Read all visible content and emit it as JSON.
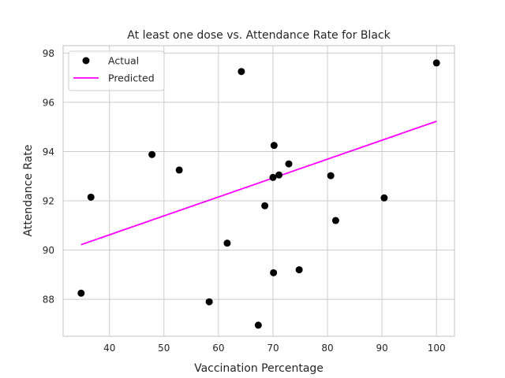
{
  "chart_data": {
    "type": "scatter",
    "title": "At least one dose vs. Attendance Rate for Black",
    "xlabel": "Vaccination Percentage",
    "ylabel": "Attendance Rate",
    "xlim": [
      31.5,
      103.3
    ],
    "ylim": [
      86.5,
      98.3
    ],
    "xticks": [
      40,
      50,
      60,
      70,
      80,
      90,
      100
    ],
    "yticks": [
      88,
      90,
      92,
      94,
      96,
      98
    ],
    "grid": true,
    "legend_position": "top-left",
    "series": [
      {
        "name": "Actual",
        "type": "scatter",
        "color": "#000000",
        "points": [
          {
            "x": 34.8,
            "y": 88.25
          },
          {
            "x": 36.6,
            "y": 92.15
          },
          {
            "x": 47.8,
            "y": 93.88
          },
          {
            "x": 52.8,
            "y": 93.25
          },
          {
            "x": 58.3,
            "y": 87.9
          },
          {
            "x": 61.6,
            "y": 90.28
          },
          {
            "x": 64.2,
            "y": 97.25
          },
          {
            "x": 67.3,
            "y": 86.95
          },
          {
            "x": 68.5,
            "y": 91.8
          },
          {
            "x": 70.0,
            "y": 92.95
          },
          {
            "x": 70.2,
            "y": 94.25
          },
          {
            "x": 70.1,
            "y": 89.08
          },
          {
            "x": 71.1,
            "y": 93.05
          },
          {
            "x": 72.9,
            "y": 93.5
          },
          {
            "x": 74.8,
            "y": 89.2
          },
          {
            "x": 80.6,
            "y": 93.02
          },
          {
            "x": 81.5,
            "y": 91.2
          },
          {
            "x": 90.4,
            "y": 92.12
          },
          {
            "x": 100.0,
            "y": 97.6
          }
        ]
      },
      {
        "name": "Predicted",
        "type": "line",
        "color": "#ff00ff",
        "points": [
          {
            "x": 34.8,
            "y": 90.22
          },
          {
            "x": 100.0,
            "y": 95.23
          }
        ]
      }
    ]
  }
}
